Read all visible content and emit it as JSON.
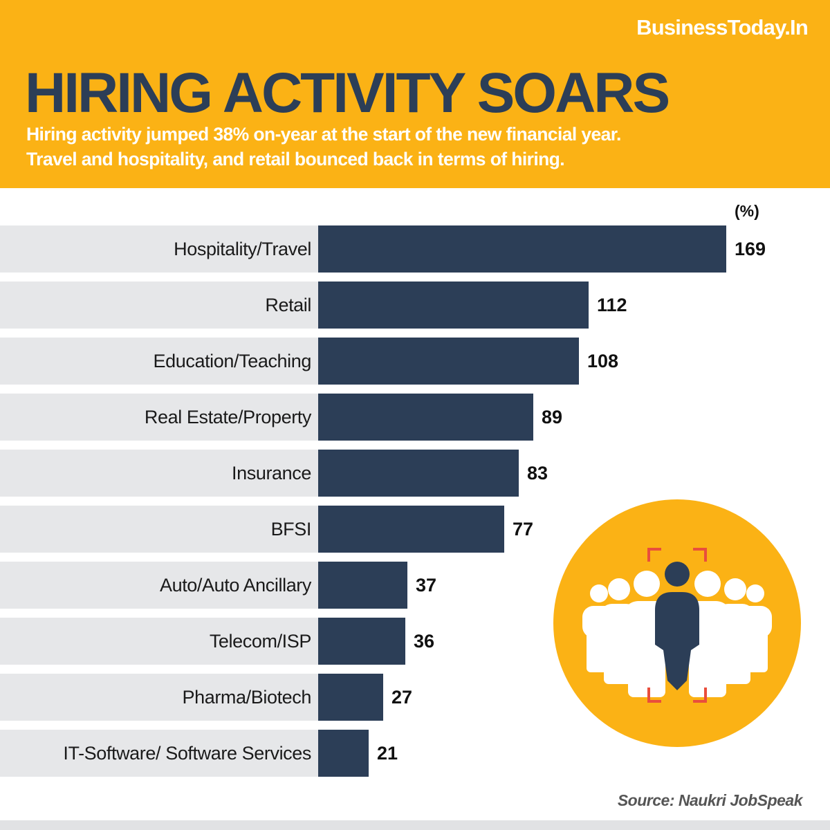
{
  "brand": "BusinessToday.In",
  "headline": "HIRING ACTIVITY SOARS",
  "subtitle_lines": [
    "Hiring activity jumped 38% on-year at the start of the new financial year.",
    "Travel and hospitality, and retail bounced back in terms of hiring."
  ],
  "source": "Source: Naukri JobSpeak",
  "illustration_icon": "people-crowd-focus-icon",
  "colors": {
    "header_bg": "#FBB215",
    "bar": "#2C3E57",
    "row_bg": "#E6E7E9",
    "circle": "#FBB215",
    "focus_bracket": "#E94E3C"
  },
  "chart_data": {
    "type": "bar",
    "orientation": "horizontal",
    "unit": "(%)",
    "categories": [
      "Hospitality/Travel",
      "Retail",
      "Education/Teaching",
      "Real Estate/Property",
      "Insurance",
      "BFSI",
      "Auto/Auto Ancillary",
      "Telecom/ISP",
      "Pharma/Biotech",
      "IT-Software/ Software Services"
    ],
    "values": [
      169,
      112,
      108,
      89,
      83,
      77,
      37,
      36,
      27,
      21
    ],
    "xlim": [
      0,
      169
    ],
    "grid": false,
    "legend": "none"
  }
}
